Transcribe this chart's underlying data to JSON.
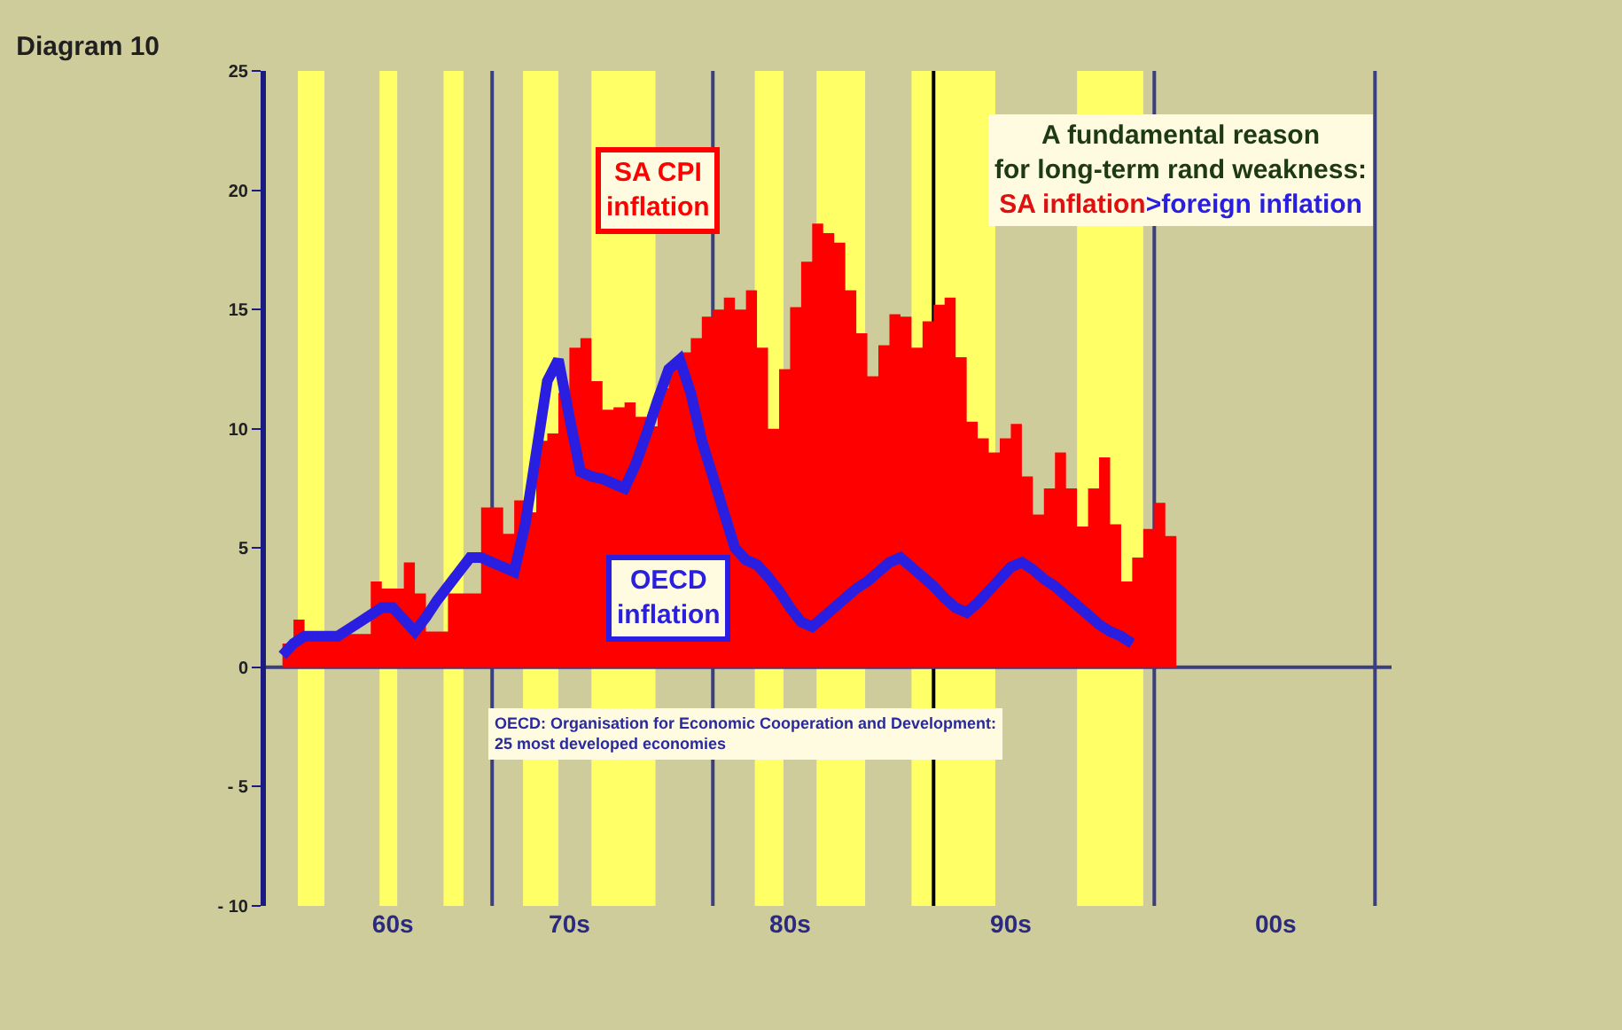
{
  "chart_data": {
    "type": "area",
    "title": "Diagram 10",
    "annotations": [
      "A fundamental reason\nfor long-term rand weakness:",
      "SA inflation",
      ">foreign inflation",
      "OECD: Organisation for Economic Cooperation and Development:\n25 most developed economies"
    ],
    "categories": [
      null,
      null,
      null,
      null,
      null,
      null,
      null,
      null,
      null,
      null,
      null,
      "60s",
      null,
      null,
      null,
      null,
      null,
      null,
      null,
      null,
      null,
      null,
      null,
      null,
      null,
      null,
      null,
      "70s",
      null,
      null,
      null,
      null,
      null,
      null,
      null,
      null,
      null,
      null,
      null,
      null,
      null,
      null,
      null,
      null,
      null,
      null,
      null,
      "80s",
      null,
      null,
      null,
      null,
      null,
      null,
      null,
      null,
      null,
      null,
      null,
      null,
      null,
      null,
      null,
      null,
      null,
      null,
      null,
      "90s",
      null,
      null,
      null,
      null,
      null,
      null,
      null,
      null,
      null,
      null,
      null,
      null,
      null,
      null,
      null,
      null,
      null,
      null,
      null,
      null,
      null,
      null,
      null,
      "00s",
      null,
      null,
      null,
      null,
      null,
      null,
      null,
      null,
      null,
      null
    ],
    "ylim": [
      -10,
      25
    ],
    "yticks": [
      {
        "value": -10,
        "label": "- 10"
      },
      {
        "value": -5,
        "label": "- 5"
      },
      0,
      5,
      10,
      15,
      20,
      25
    ],
    "grid": false,
    "legend": false,
    "series": [
      {
        "name": "SA CPI\ninflation",
        "color": "#ff0000",
        "values": [
          null,
          1.0,
          2.0,
          1.5,
          1.3,
          1.3,
          1.4,
          1.4,
          1.4,
          3.6,
          3.3,
          3.3,
          4.4,
          3.1,
          1.5,
          1.5,
          3.1,
          3.1,
          3.1,
          6.7,
          6.7,
          5.6,
          7.0,
          6.5,
          9.5,
          9.8,
          11.5,
          13.4,
          13.8,
          12.0,
          10.8,
          10.9,
          11.1,
          10.5,
          10.1,
          11.7,
          12.5,
          13.2,
          13.8,
          14.7,
          15.0,
          15.5,
          15.0,
          15.8,
          13.4,
          10.0,
          12.5,
          15.1,
          17.0,
          18.6,
          18.2,
          17.8,
          15.8,
          14.0,
          12.2,
          13.5,
          14.8,
          14.7,
          13.4,
          14.5,
          15.2,
          15.5,
          13.0,
          10.3,
          9.6,
          9.0,
          9.6,
          10.2,
          8.0,
          6.4,
          7.5,
          9.0,
          7.5,
          5.9,
          7.5,
          8.8,
          6.0,
          3.6,
          4.6,
          5.8,
          6.9,
          5.5,
          4.6,
          null,
          null,
          null,
          null,
          null,
          null,
          null,
          null,
          null,
          null,
          null,
          null,
          null,
          null,
          null,
          null,
          null,
          null,
          null
        ]
      },
      {
        "name": "OECD\ninflation",
        "type": "line",
        "color": "#2a1fe0",
        "values": [
          null,
          0.5,
          1.0,
          1.3,
          1.3,
          1.3,
          1.3,
          1.6,
          1.9,
          2.2,
          2.5,
          2.5,
          2.0,
          1.5,
          2.1,
          2.8,
          3.4,
          4.0,
          4.6,
          4.6,
          4.4,
          4.2,
          4.0,
          6.0,
          9.0,
          12.0,
          12.9,
          10.5,
          8.2,
          8.0,
          7.9,
          7.7,
          7.5,
          8.5,
          9.8,
          11.2,
          12.5,
          12.9,
          11.5,
          9.5,
          8.0,
          6.5,
          5.0,
          4.5,
          4.3,
          3.8,
          3.2,
          2.5,
          1.9,
          1.7,
          2.1,
          2.5,
          2.9,
          3.3,
          3.6,
          4.0,
          4.4,
          4.6,
          4.2,
          3.8,
          3.4,
          2.9,
          2.5,
          2.3,
          2.7,
          3.2,
          3.7,
          4.2,
          4.4,
          4.1,
          3.7,
          3.4,
          3.0,
          2.6,
          2.2,
          1.8,
          1.5,
          1.3,
          1.0,
          null,
          null,
          null,
          null,
          null,
          null,
          null,
          null,
          null,
          null,
          null,
          null,
          null,
          null,
          null,
          null,
          null,
          null,
          null,
          null,
          null,
          null,
          null
        ]
      }
    ],
    "ref_lines": [
      {
        "axis": "y",
        "value": 0,
        "color": "#3a3f80"
      }
    ]
  }
}
